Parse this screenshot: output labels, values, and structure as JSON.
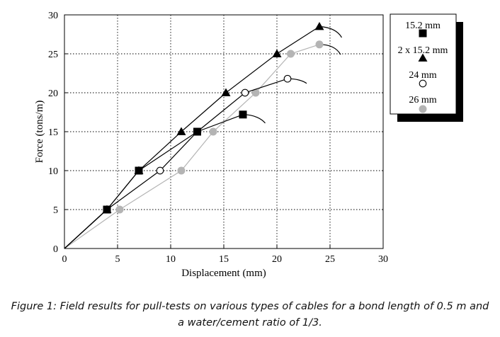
{
  "chart_data": {
    "type": "line",
    "xlabel": "Displacement (mm)",
    "ylabel": "Force (tons/m)",
    "xlim": [
      0,
      30
    ],
    "ylim": [
      0,
      30
    ],
    "xticks": [
      0,
      5,
      10,
      15,
      20,
      25,
      30
    ],
    "yticks": [
      0,
      5,
      10,
      15,
      20,
      25,
      30
    ],
    "grid": true,
    "legend_position": "top-right",
    "series": [
      {
        "name": "15.2 mm",
        "marker": "filled-square",
        "color": "#000000",
        "points": [
          [
            0,
            0
          ],
          [
            4,
            5
          ],
          [
            7,
            10
          ],
          [
            12.5,
            15
          ],
          [
            16.8,
            17.2
          ]
        ],
        "tail": [
          [
            16.8,
            17.2
          ],
          [
            17.9,
            17.2
          ],
          [
            18.6,
            16.6
          ],
          [
            18.9,
            16.1
          ]
        ]
      },
      {
        "name": "2 x 15.2 mm",
        "marker": "filled-triangle",
        "color": "#000000",
        "points": [
          [
            0,
            0
          ],
          [
            4,
            5
          ],
          [
            7,
            10
          ],
          [
            11,
            15
          ],
          [
            15.2,
            20
          ],
          [
            20,
            25
          ],
          [
            24,
            28.5
          ]
        ],
        "tail": [
          [
            24,
            28.5
          ],
          [
            25.2,
            28.4
          ],
          [
            25.8,
            27.8
          ],
          [
            26.1,
            27.1
          ]
        ]
      },
      {
        "name": "24 mm",
        "marker": "open-circle",
        "color": "#000000",
        "points": [
          [
            0,
            0
          ],
          [
            4,
            5
          ],
          [
            9,
            10
          ],
          [
            12.5,
            15
          ],
          [
            17,
            20
          ],
          [
            21,
            21.8
          ]
        ],
        "tail": [
          [
            21,
            21.8
          ],
          [
            21.9,
            21.8
          ],
          [
            22.5,
            21.5
          ],
          [
            22.8,
            21.2
          ]
        ]
      },
      {
        "name": "26 mm",
        "marker": "filled-circle",
        "color": "#b4b4b4",
        "points": [
          [
            0,
            0
          ],
          [
            5.2,
            5
          ],
          [
            11,
            10
          ],
          [
            14,
            15
          ],
          [
            18,
            20
          ],
          [
            21.3,
            25
          ],
          [
            24,
            26.2
          ]
        ],
        "tail": [
          [
            24,
            26.2
          ],
          [
            25.1,
            26.2
          ],
          [
            25.7,
            25.6
          ],
          [
            26,
            24.9
          ]
        ]
      }
    ]
  },
  "caption": {
    "line1": "Figure 1: Field results for pull-tests on various types of cables for a bond length of 0.5 m and",
    "line2": "a water/cement ratio of 1/3."
  }
}
